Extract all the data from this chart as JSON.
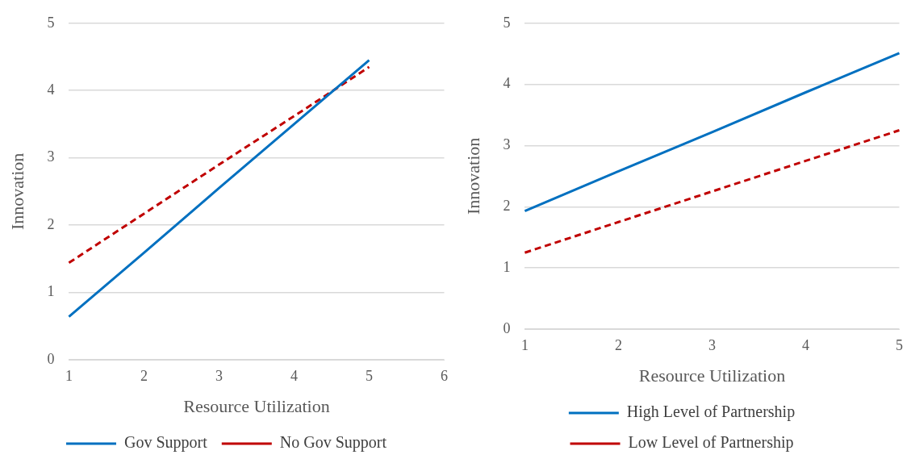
{
  "chart_data": [
    {
      "type": "line",
      "xlabel": "Resource Utilization",
      "ylabel": "Innovation",
      "categories": [
        "1",
        "2",
        "3",
        "4",
        "5",
        "6"
      ],
      "ylim": [
        0,
        5
      ],
      "yticks": [
        0,
        1,
        2,
        3,
        4,
        5
      ],
      "grid": "y",
      "legend": "bottom",
      "marker": "none",
      "series": [
        {
          "name": "Gov Support",
          "color": "#0070c0",
          "line_style": "solid",
          "values": [
            0.64,
            1.59,
            2.55,
            3.5,
            4.45,
            null
          ]
        },
        {
          "name": "No Gov Support",
          "color": "#c00000",
          "line_style": "dashed",
          "values": [
            1.44,
            2.17,
            2.9,
            3.62,
            4.35,
            null
          ]
        }
      ]
    },
    {
      "type": "line",
      "xlabel": "Resource Utilization",
      "ylabel": "Innovation",
      "categories": [
        "1",
        "2",
        "3",
        "4",
        "5"
      ],
      "ylim": [
        0,
        5
      ],
      "yticks": [
        0,
        1,
        2,
        3,
        4,
        5
      ],
      "grid": "y",
      "legend": "bottom",
      "marker": "none",
      "series": [
        {
          "name": "High Level of Partnership",
          "color": "#0070c0",
          "line_style": "solid",
          "values": [
            1.93,
            2.58,
            3.22,
            3.87,
            4.51
          ]
        },
        {
          "name": "Low Level of Partnership",
          "color": "#c00000",
          "line_style": "dashed",
          "values": [
            1.25,
            1.75,
            2.25,
            2.75,
            3.25
          ]
        }
      ]
    }
  ]
}
